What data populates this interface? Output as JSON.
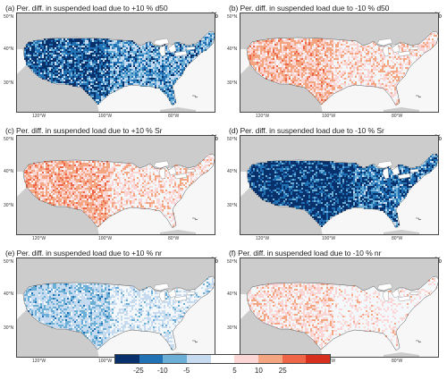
{
  "panels": [
    {
      "title": "(a) Per. diff. in suspended load due to +10 % d50",
      "unit": "%",
      "pattern": "blue-strong"
    },
    {
      "title": "(b) Per. diff. in suspended load due to -10 % d50",
      "unit": "%",
      "pattern": "red-medium"
    },
    {
      "title": "(c) Per. diff. in suspended load due to +10 % Sr",
      "unit": "%",
      "pattern": "red-medium-west"
    },
    {
      "title": "(d) Per. diff. in suspended load due to -10 % Sr",
      "unit": "%",
      "pattern": "blue-strongest"
    },
    {
      "title": "(e) Per. diff. in suspended load due to +10 % nr",
      "unit": "%",
      "pattern": "blue-light"
    },
    {
      "title": "(f) Per. diff. in suspended load due to -10 % nr",
      "unit": "%",
      "pattern": "red-light"
    }
  ],
  "axes": {
    "lat_labels": [
      "50°N",
      "40°N",
      "30°N"
    ],
    "lon_labels": [
      "120°W",
      "100°W",
      "80°W"
    ]
  },
  "colorbar": {
    "colors": [
      "#08306b",
      "#2171b5",
      "#6baed6",
      "#c6dbef",
      "#ffffff",
      "#fcd5d5",
      "#f4a582",
      "#ef6548",
      "#d7301f"
    ],
    "labels": [
      "-25",
      "-10",
      "-5",
      "5",
      "10",
      "25"
    ]
  },
  "colors": {
    "land": "#cccccc",
    "water": "#ffffff",
    "neutral": "#f4f8fb"
  }
}
